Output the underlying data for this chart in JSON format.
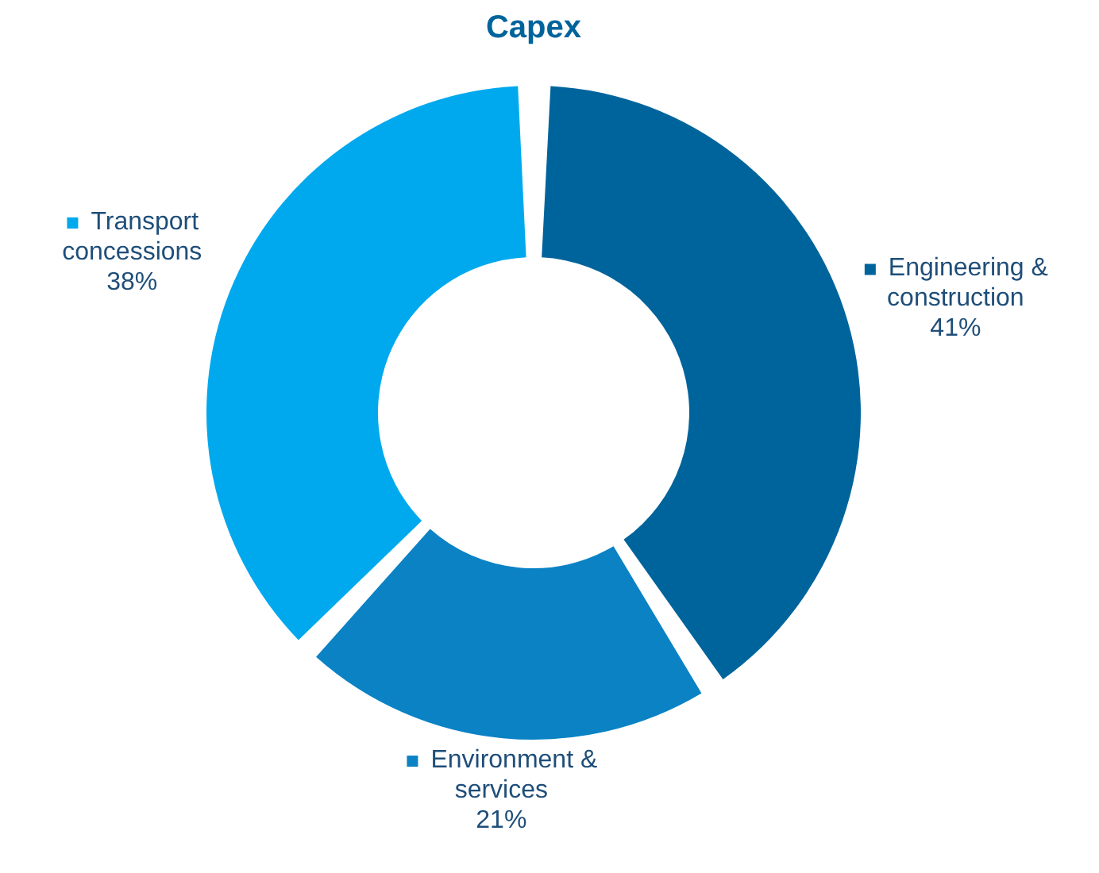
{
  "chart_data": {
    "type": "donut",
    "title": "Capex",
    "categories": [
      "Engineering & construction",
      "Environment & services",
      "Transport concessions"
    ],
    "values": [
      41,
      21,
      38
    ],
    "colors": [
      "#00649c",
      "#0a82c4",
      "#00a9ee"
    ],
    "value_labels": [
      "41%",
      "21%",
      "38%"
    ],
    "legend": "right"
  }
}
